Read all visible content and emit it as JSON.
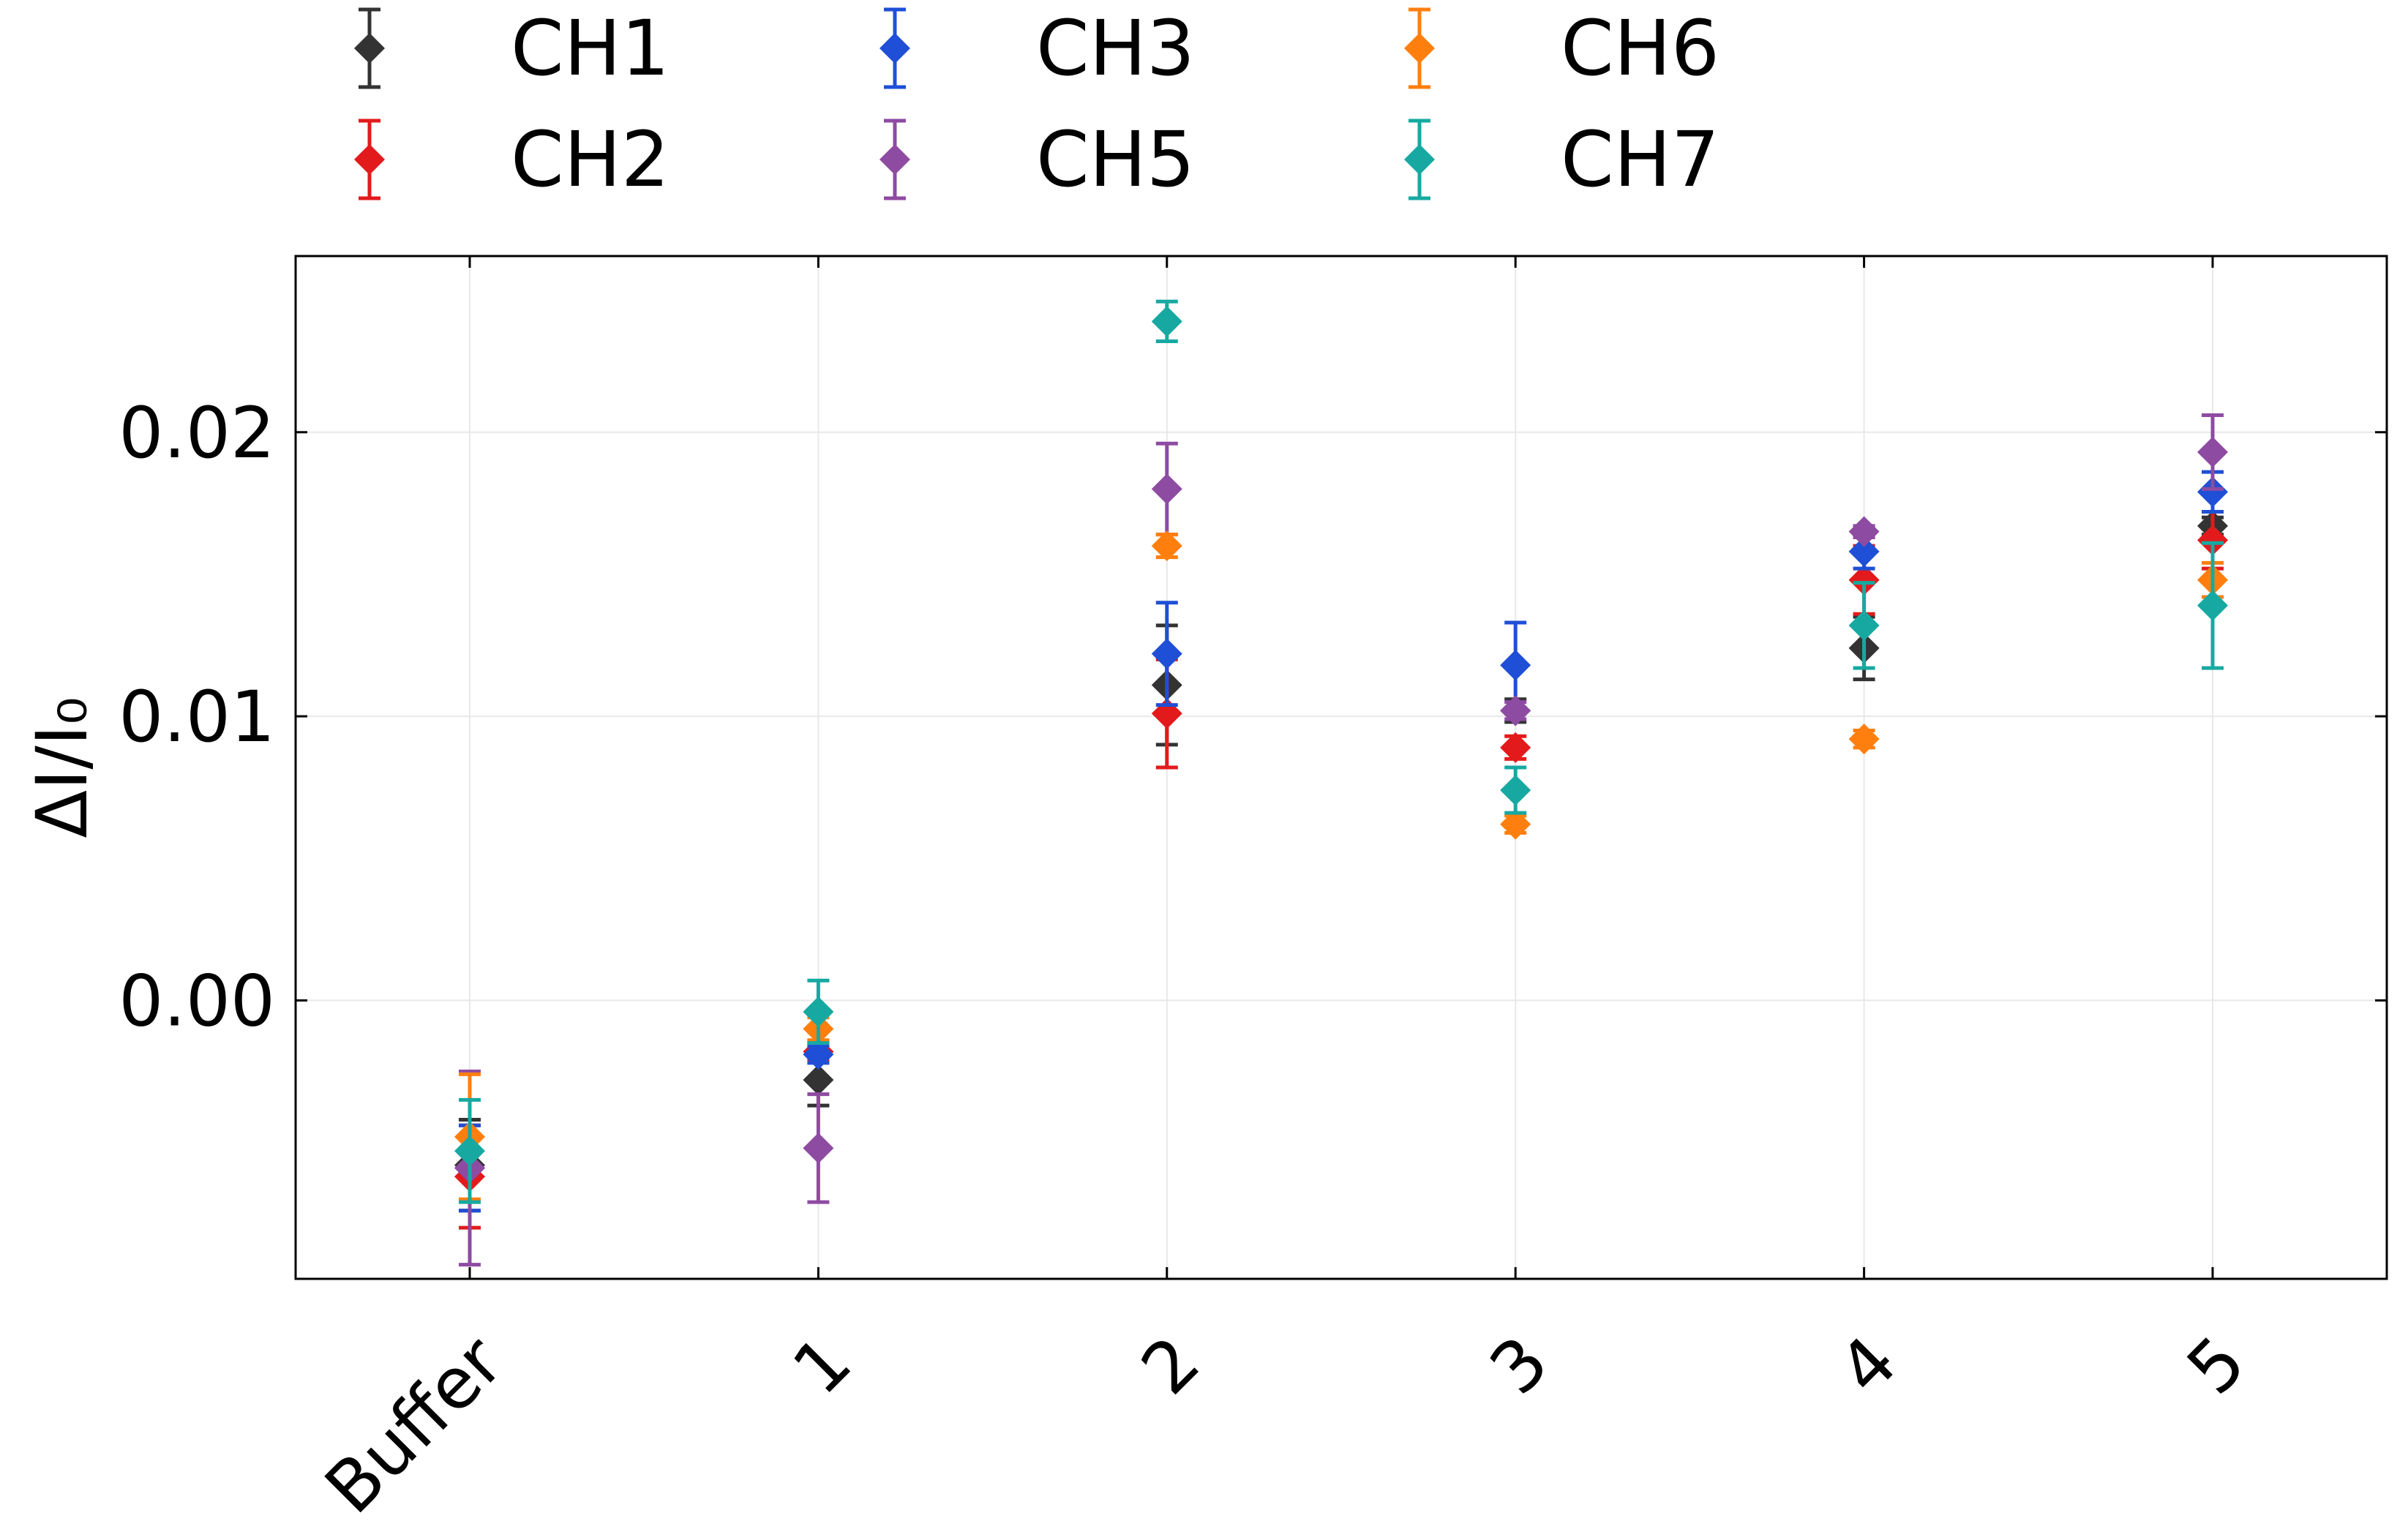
{
  "chart_data": {
    "type": "scatter",
    "title": "",
    "xlabel": "",
    "ylabel": "ΔI/I₀",
    "categories": [
      "Buffer",
      "1",
      "2",
      "3",
      "4",
      "5"
    ],
    "yticks": [
      "0.00",
      "0.01",
      "0.02"
    ],
    "ylim": [
      -0.0098,
      0.0262
    ],
    "grid": true,
    "legend_position": "top",
    "series": [
      {
        "name": "CH1",
        "color": "#333333",
        "values": [
          -0.0058,
          -0.0028,
          0.0111,
          0.0102,
          0.0124,
          0.0167
        ],
        "errors": [
          0.0016,
          0.0009,
          0.0021,
          0.0004,
          0.0011,
          0.0003
        ]
      },
      {
        "name": "CH2",
        "color": "#e31a1c",
        "values": [
          -0.0062,
          -0.0018,
          0.0101,
          0.0089,
          0.0148,
          0.0162
        ],
        "errors": [
          0.0018,
          0.0003,
          0.0019,
          0.0004,
          0.0012,
          0.001
        ]
      },
      {
        "name": "CH3",
        "color": "#1f4fd6",
        "values": [
          -0.0059,
          -0.0019,
          0.0122,
          0.0118,
          0.0158,
          0.0179
        ],
        "errors": [
          0.0015,
          0.0003,
          0.0018,
          0.0015,
          0.0006,
          0.0007
        ]
      },
      {
        "name": "CH5",
        "color": "#8e4ba2",
        "values": [
          -0.0059,
          -0.0052,
          0.018,
          0.0102,
          0.0165,
          0.0193
        ],
        "errors": [
          0.0034,
          0.0019,
          0.0016,
          0.0003,
          0.0002,
          0.0013
        ]
      },
      {
        "name": "CH6",
        "color": "#ff7f0e",
        "values": [
          -0.0048,
          -0.001,
          0.016,
          0.0062,
          0.0092,
          0.0148
        ],
        "errors": [
          0.0022,
          0.0004,
          0.0004,
          0.0003,
          0.0003,
          0.0006
        ]
      },
      {
        "name": "CH7",
        "color": "#17a9a1",
        "values": [
          -0.0053,
          -0.0004,
          0.0239,
          0.0074,
          0.0132,
          0.0139
        ],
        "errors": [
          0.0018,
          0.0011,
          0.0007,
          0.0008,
          0.0015,
          0.0022
        ]
      }
    ]
  }
}
